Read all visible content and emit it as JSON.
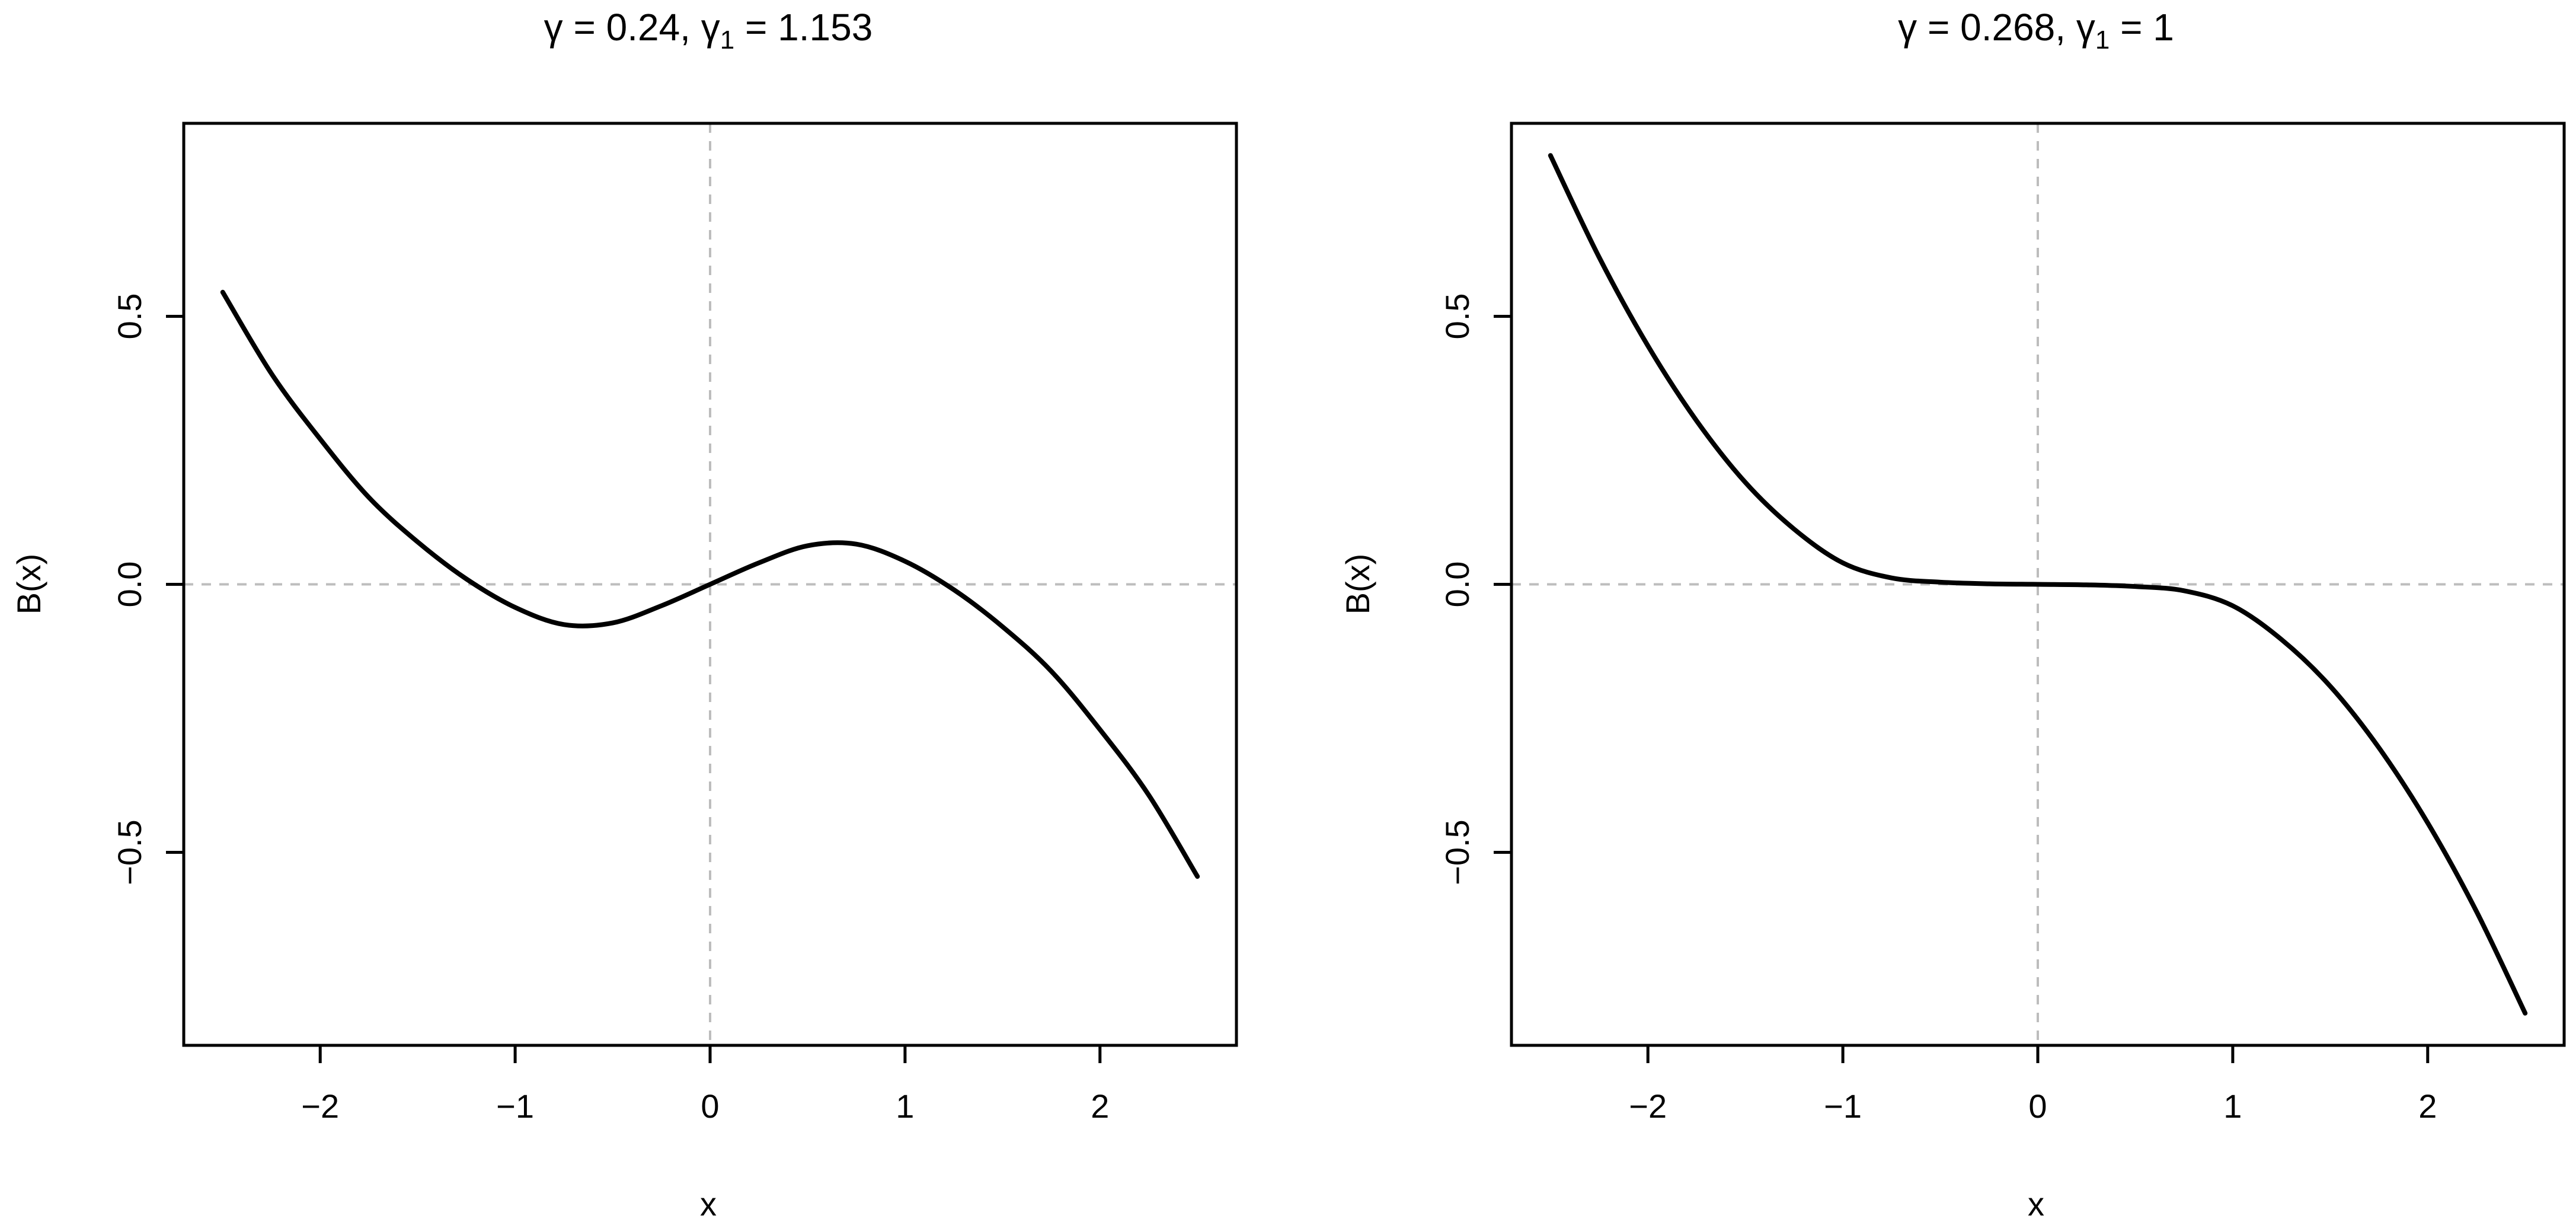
{
  "chart_data": [
    {
      "type": "line",
      "title": "γ = 0.24, γ₁ = 1.153",
      "title_parts": {
        "gamma": "0.24",
        "gamma1": "1.153"
      },
      "xlabel": "x",
      "ylabel": "B(x)",
      "xlim": [
        -2.7,
        2.7
      ],
      "ylim": [
        -0.86,
        0.86
      ],
      "xticks": [
        -2,
        -1,
        0,
        1,
        2
      ],
      "xtick_labels": [
        "−2",
        "−1",
        "0",
        "1",
        "2"
      ],
      "yticks": [
        -0.5,
        0.0,
        0.5
      ],
      "ytick_labels": [
        "−0.5",
        "0.0",
        "0.5"
      ],
      "reference_lines": {
        "x": 0,
        "y": 0
      },
      "grid": false,
      "series": [
        {
          "color": "#000000",
          "x": [
            -2.5,
            -2.25,
            -2.0,
            -1.75,
            -1.5,
            -1.25,
            -1.0,
            -0.75,
            -0.5,
            -0.25,
            0.0,
            0.25,
            0.5,
            0.75,
            1.0,
            1.25,
            1.5,
            1.75,
            2.0,
            2.25,
            2.5
          ],
          "y": [
            0.545,
            0.393,
            0.271,
            0.162,
            0.079,
            0.01,
            -0.043,
            -0.075,
            -0.072,
            -0.04,
            0.0,
            0.04,
            0.072,
            0.075,
            0.043,
            -0.01,
            -0.079,
            -0.162,
            -0.271,
            -0.393,
            -0.545
          ]
        }
      ]
    },
    {
      "type": "line",
      "title": "γ = 0.268, γ₁ = 1",
      "title_parts": {
        "gamma": "0.268",
        "gamma1": "1"
      },
      "xlabel": "x",
      "ylabel": "B(x)",
      "xlim": [
        -2.7,
        2.7
      ],
      "ylim": [
        -0.86,
        0.86
      ],
      "xticks": [
        -2,
        -1,
        0,
        1,
        2
      ],
      "xtick_labels": [
        "−2",
        "−1",
        "0",
        "1",
        "2"
      ],
      "yticks": [
        -0.5,
        0.0,
        0.5
      ],
      "ytick_labels": [
        "−0.5",
        "0.0",
        "0.5"
      ],
      "reference_lines": {
        "x": 0,
        "y": 0
      },
      "grid": false,
      "series": [
        {
          "color": "#000000",
          "x": [
            -2.5,
            -2.25,
            -2.0,
            -1.75,
            -1.5,
            -1.25,
            -1.0,
            -0.75,
            -0.5,
            -0.25,
            0.0,
            0.25,
            0.5,
            0.75,
            1.0,
            1.25,
            1.5,
            1.75,
            2.0,
            2.25,
            2.5
          ],
          "y": [
            0.8,
            0.61,
            0.445,
            0.305,
            0.19,
            0.103,
            0.04,
            0.012,
            0.004,
            0.001,
            0.0,
            -0.001,
            -0.004,
            -0.012,
            -0.04,
            -0.103,
            -0.19,
            -0.305,
            -0.445,
            -0.61,
            -0.8
          ]
        }
      ]
    }
  ]
}
